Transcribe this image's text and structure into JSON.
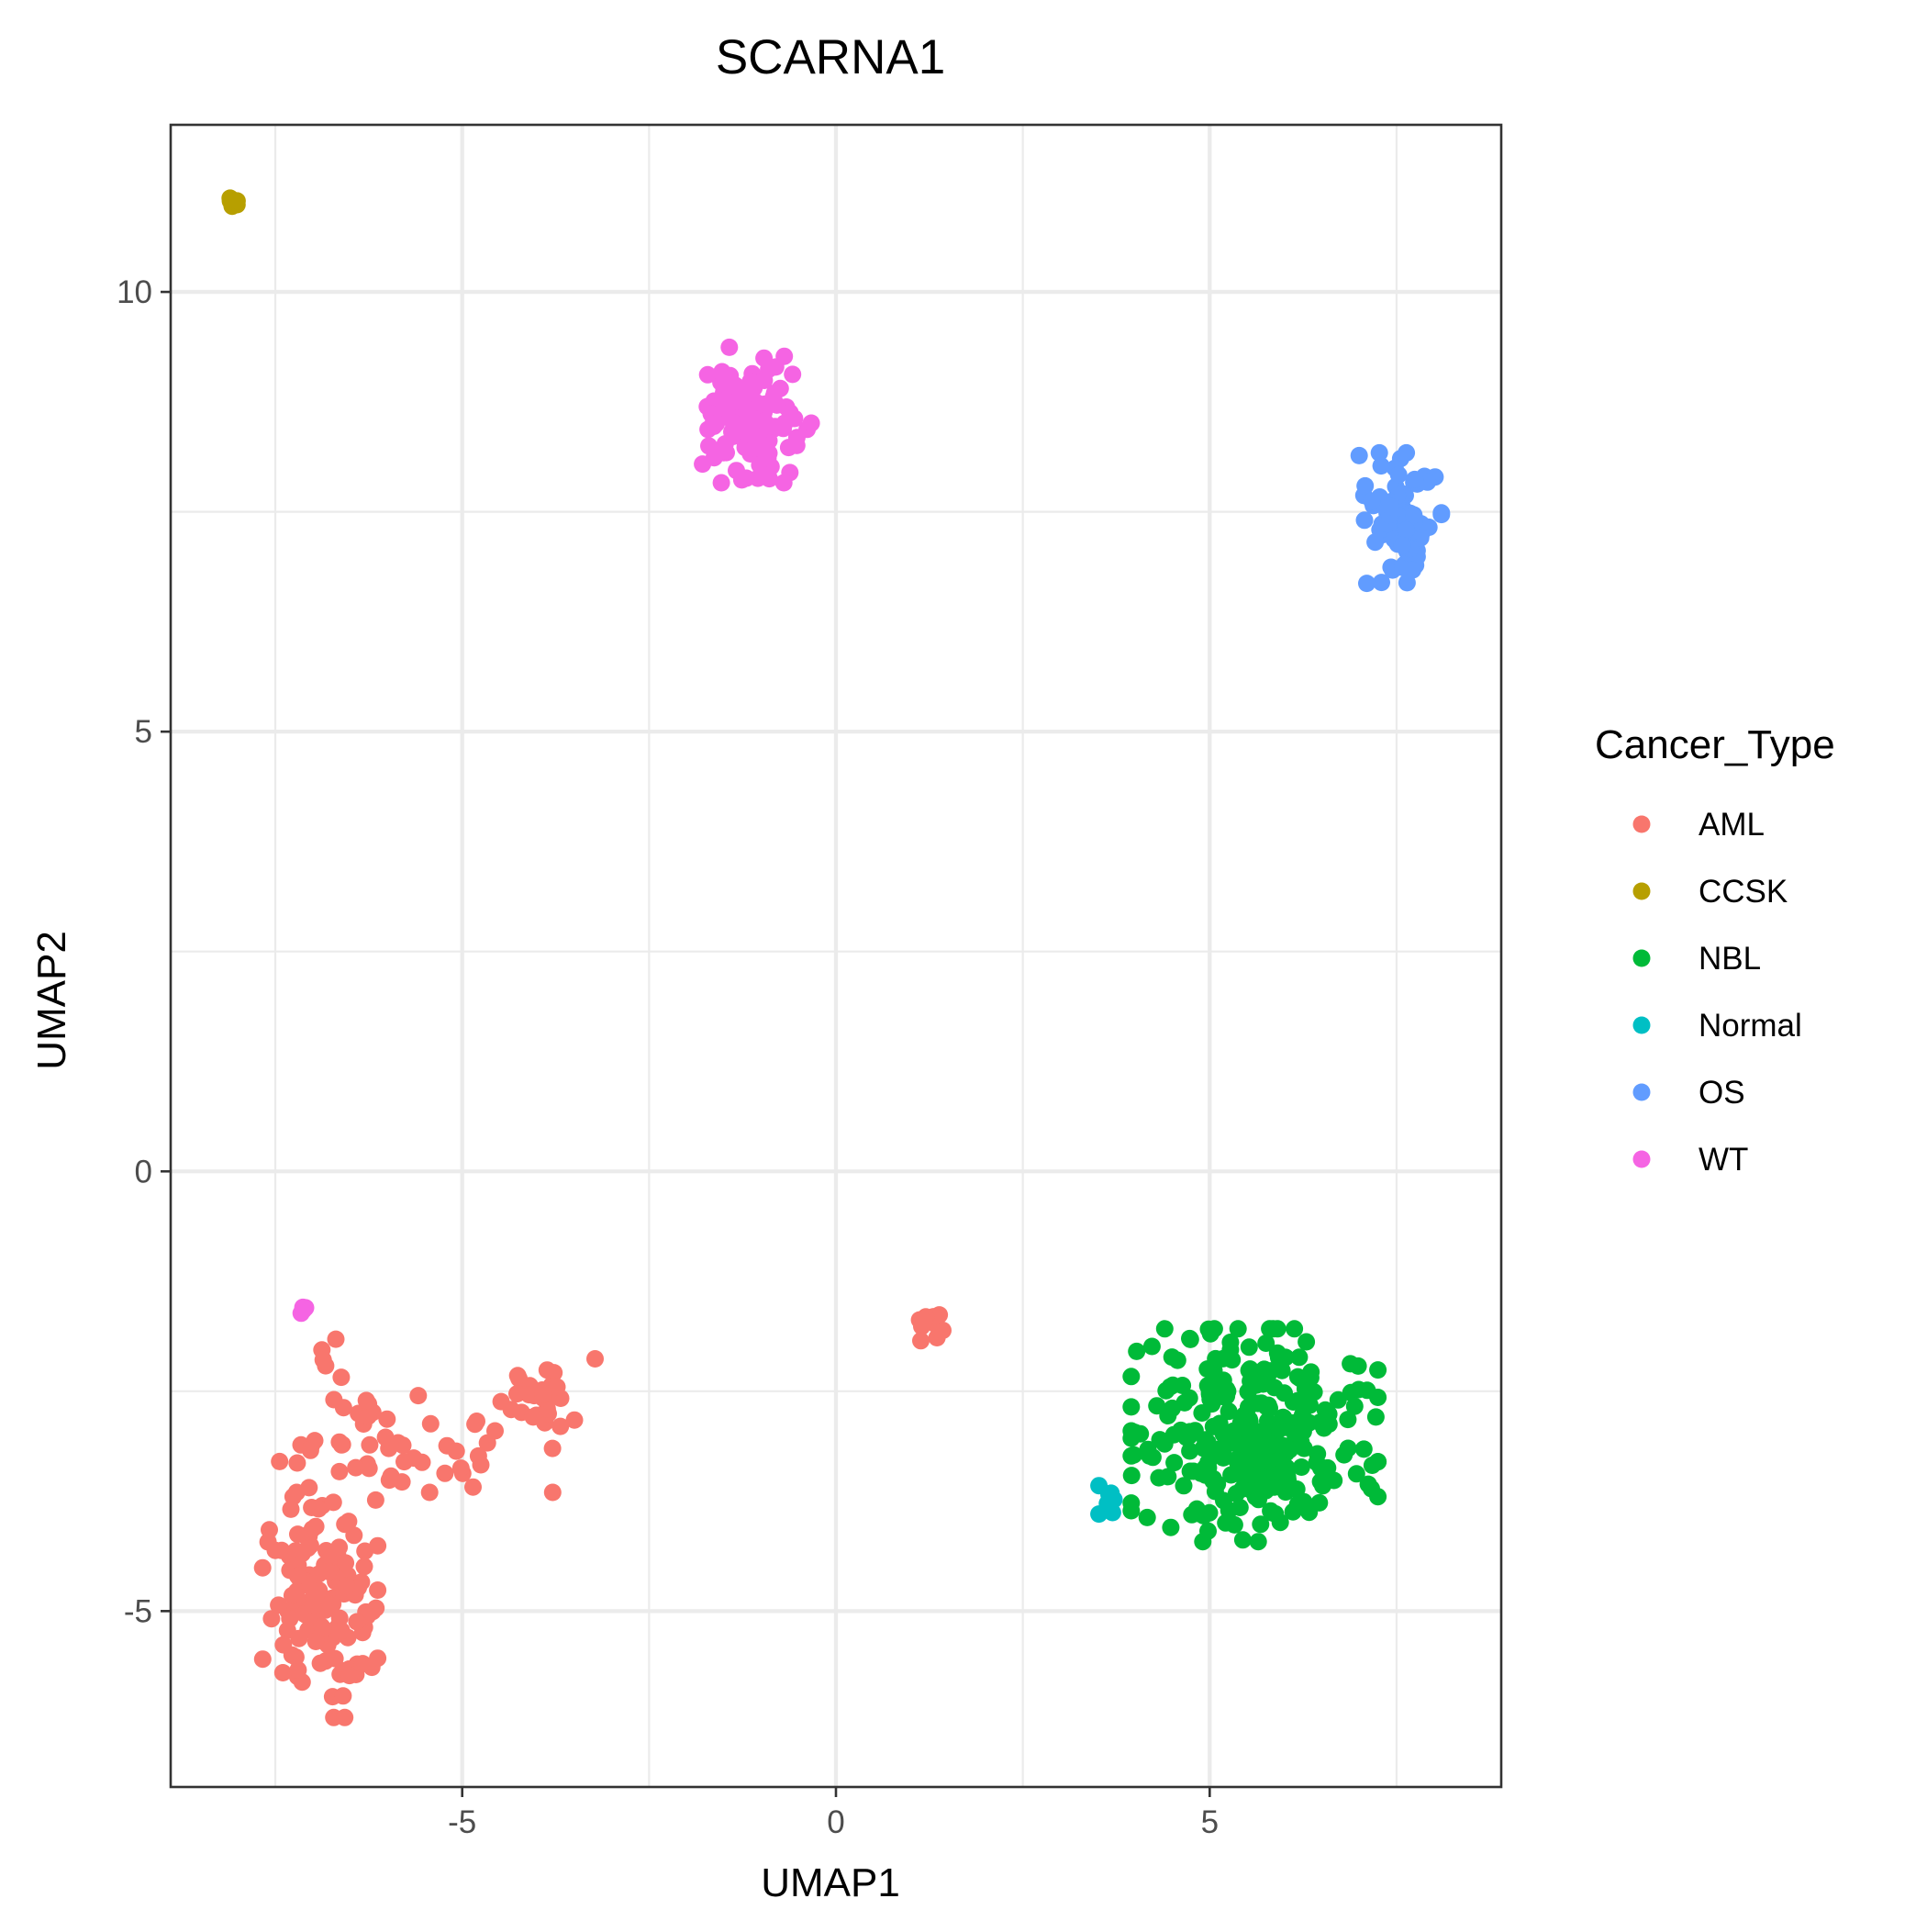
{
  "chart_data": {
    "type": "scatter",
    "title": "SCARNA1",
    "xlabel": "UMAP1",
    "ylabel": "UMAP2",
    "xlim": [
      -8.9,
      8.9
    ],
    "ylim": [
      -7,
      11.9
    ],
    "x_ticks": [
      -5,
      0,
      5
    ],
    "y_ticks": [
      -5,
      0,
      5,
      10
    ],
    "x_tick_labels": [
      "-5",
      "0",
      "5"
    ],
    "y_tick_labels": [
      "-5",
      "0",
      "5",
      "10"
    ],
    "grid": true,
    "legend": {
      "title": "Cancer_Type",
      "position": "right",
      "entries": [
        "AML",
        "CCSK",
        "NBL",
        "Normal",
        "OS",
        "WT"
      ]
    },
    "series": [
      {
        "name": "AML",
        "color": "#F8766D",
        "clusters": [
          {
            "center": [
              -6.9,
              -5.0
            ],
            "spread": [
              0.35,
              0.55
            ],
            "count": 110
          },
          {
            "center": [
              -7.1,
              -4.1
            ],
            "spread": [
              0.25,
              0.45
            ],
            "count": 25
          },
          {
            "center": [
              -6.3,
              -3.1
            ],
            "spread": [
              0.4,
              0.3
            ],
            "count": 24
          },
          {
            "center": [
              -6.8,
              -2.2
            ],
            "spread": [
              0.12,
              0.18
            ],
            "count": 6
          },
          {
            "center": [
              -5.0,
              -3.1
            ],
            "spread": [
              0.55,
              0.25
            ],
            "count": 20
          },
          {
            "center": [
              -3.9,
              -2.6
            ],
            "spread": [
              0.35,
              0.25
            ],
            "count": 28
          },
          {
            "center": [
              1.3,
              -1.75
            ],
            "spread": [
              0.12,
              0.08
            ],
            "count": 12
          }
        ]
      },
      {
        "name": "CCSK",
        "color": "#B79F00",
        "clusters": [
          {
            "center": [
              -8.05,
              11.0
            ],
            "spread": [
              0.04,
              0.03
            ],
            "count": 5
          }
        ]
      },
      {
        "name": "NBL",
        "color": "#00BA38",
        "clusters": [
          {
            "center": [
              5.6,
              -3.0
            ],
            "spread": [
              0.75,
              0.55
            ],
            "count": 290
          }
        ]
      },
      {
        "name": "Normal",
        "color": "#00BFC4",
        "clusters": [
          {
            "center": [
              3.65,
              -3.75
            ],
            "spread": [
              0.06,
              0.08
            ],
            "count": 7
          }
        ]
      },
      {
        "name": "OS",
        "color": "#619CFF",
        "clusters": [
          {
            "center": [
              7.55,
              7.4
            ],
            "spread": [
              0.25,
              0.35
            ],
            "count": 90
          }
        ]
      },
      {
        "name": "WT",
        "color": "#F564E3",
        "clusters": [
          {
            "center": [
              -1.1,
              8.6
            ],
            "spread": [
              0.35,
              0.35
            ],
            "count": 140
          },
          {
            "center": [
              -7.1,
              -1.55
            ],
            "spread": [
              0.03,
              0.05
            ],
            "count": 4
          }
        ]
      }
    ]
  }
}
